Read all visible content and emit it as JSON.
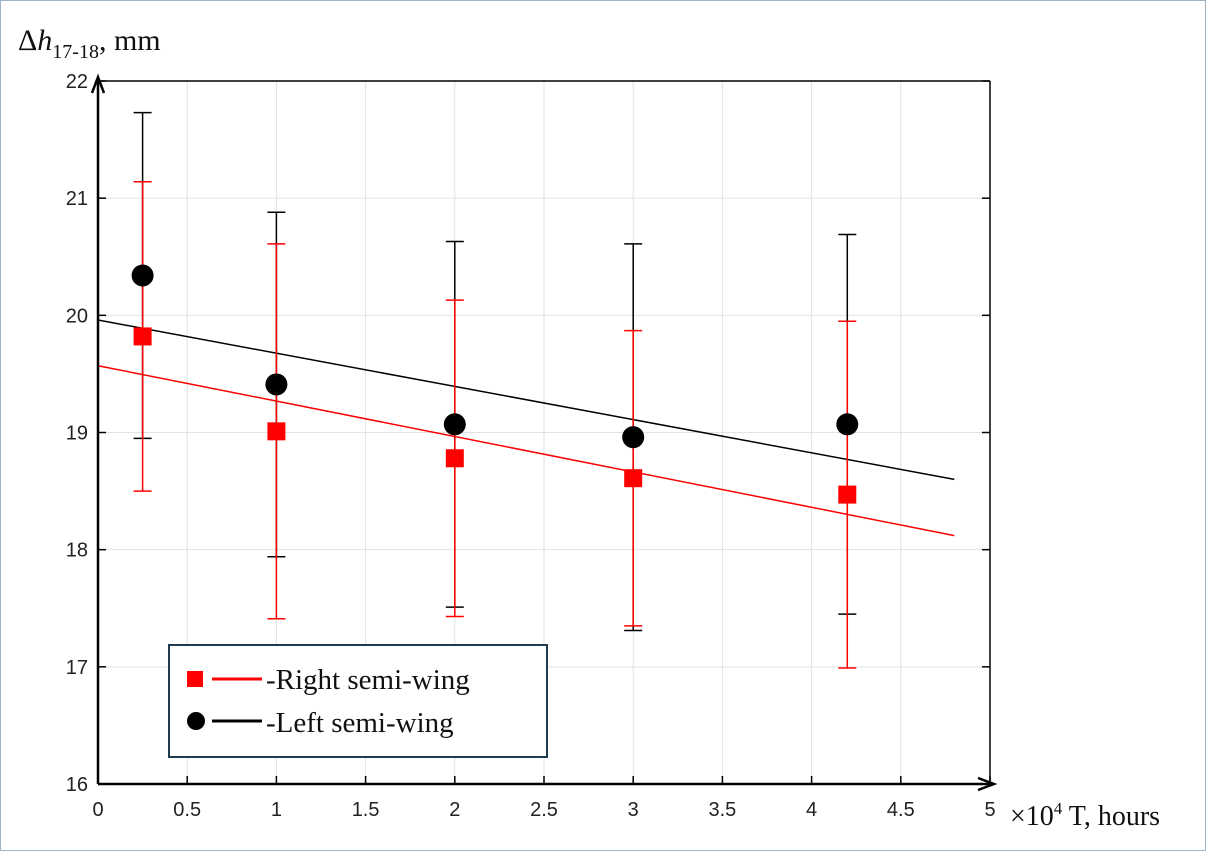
{
  "chart_data": {
    "type": "scatter",
    "ylabel": {
      "symbol": "Δ",
      "var": "h",
      "sub": "17-18",
      "unit": ", mm"
    },
    "xlabel": {
      "mult": "×10",
      "exp": "4",
      "text": " T, hours"
    },
    "xlim": [
      0,
      5
    ],
    "ylim": [
      16,
      22
    ],
    "xticks": [
      "0",
      "0.5",
      "1",
      "1.5",
      "2",
      "2.5",
      "3",
      "3.5",
      "4",
      "4.5",
      "5"
    ],
    "yticks": [
      "16",
      "17",
      "18",
      "19",
      "20",
      "21",
      "22"
    ],
    "grid": true,
    "legend_position": "bottom-left",
    "series": [
      {
        "name": "-Right semi-wing",
        "color": "#ff0000",
        "marker": "square",
        "x": [
          0.25,
          1,
          2,
          3,
          4.2
        ],
        "y": [
          19.82,
          19.01,
          18.78,
          18.61,
          18.47
        ],
        "err_low": [
          18.5,
          17.41,
          17.43,
          17.35,
          16.99
        ],
        "err_high": [
          21.14,
          20.61,
          20.13,
          19.87,
          19.95
        ],
        "fit": {
          "x": [
            0,
            4.8
          ],
          "y": [
            19.57,
            18.12
          ]
        }
      },
      {
        "name": "-Left semi-wing",
        "color": "#000000",
        "marker": "circle",
        "x": [
          0.25,
          1,
          2,
          3,
          4.2
        ],
        "y": [
          20.34,
          19.41,
          19.07,
          18.96,
          19.07
        ],
        "err_low": [
          18.95,
          17.94,
          17.51,
          17.31,
          17.45
        ],
        "err_high": [
          21.73,
          20.88,
          20.63,
          20.61,
          20.69
        ],
        "fit": {
          "x": [
            0,
            4.8
          ],
          "y": [
            19.96,
            18.6
          ]
        }
      }
    ]
  }
}
